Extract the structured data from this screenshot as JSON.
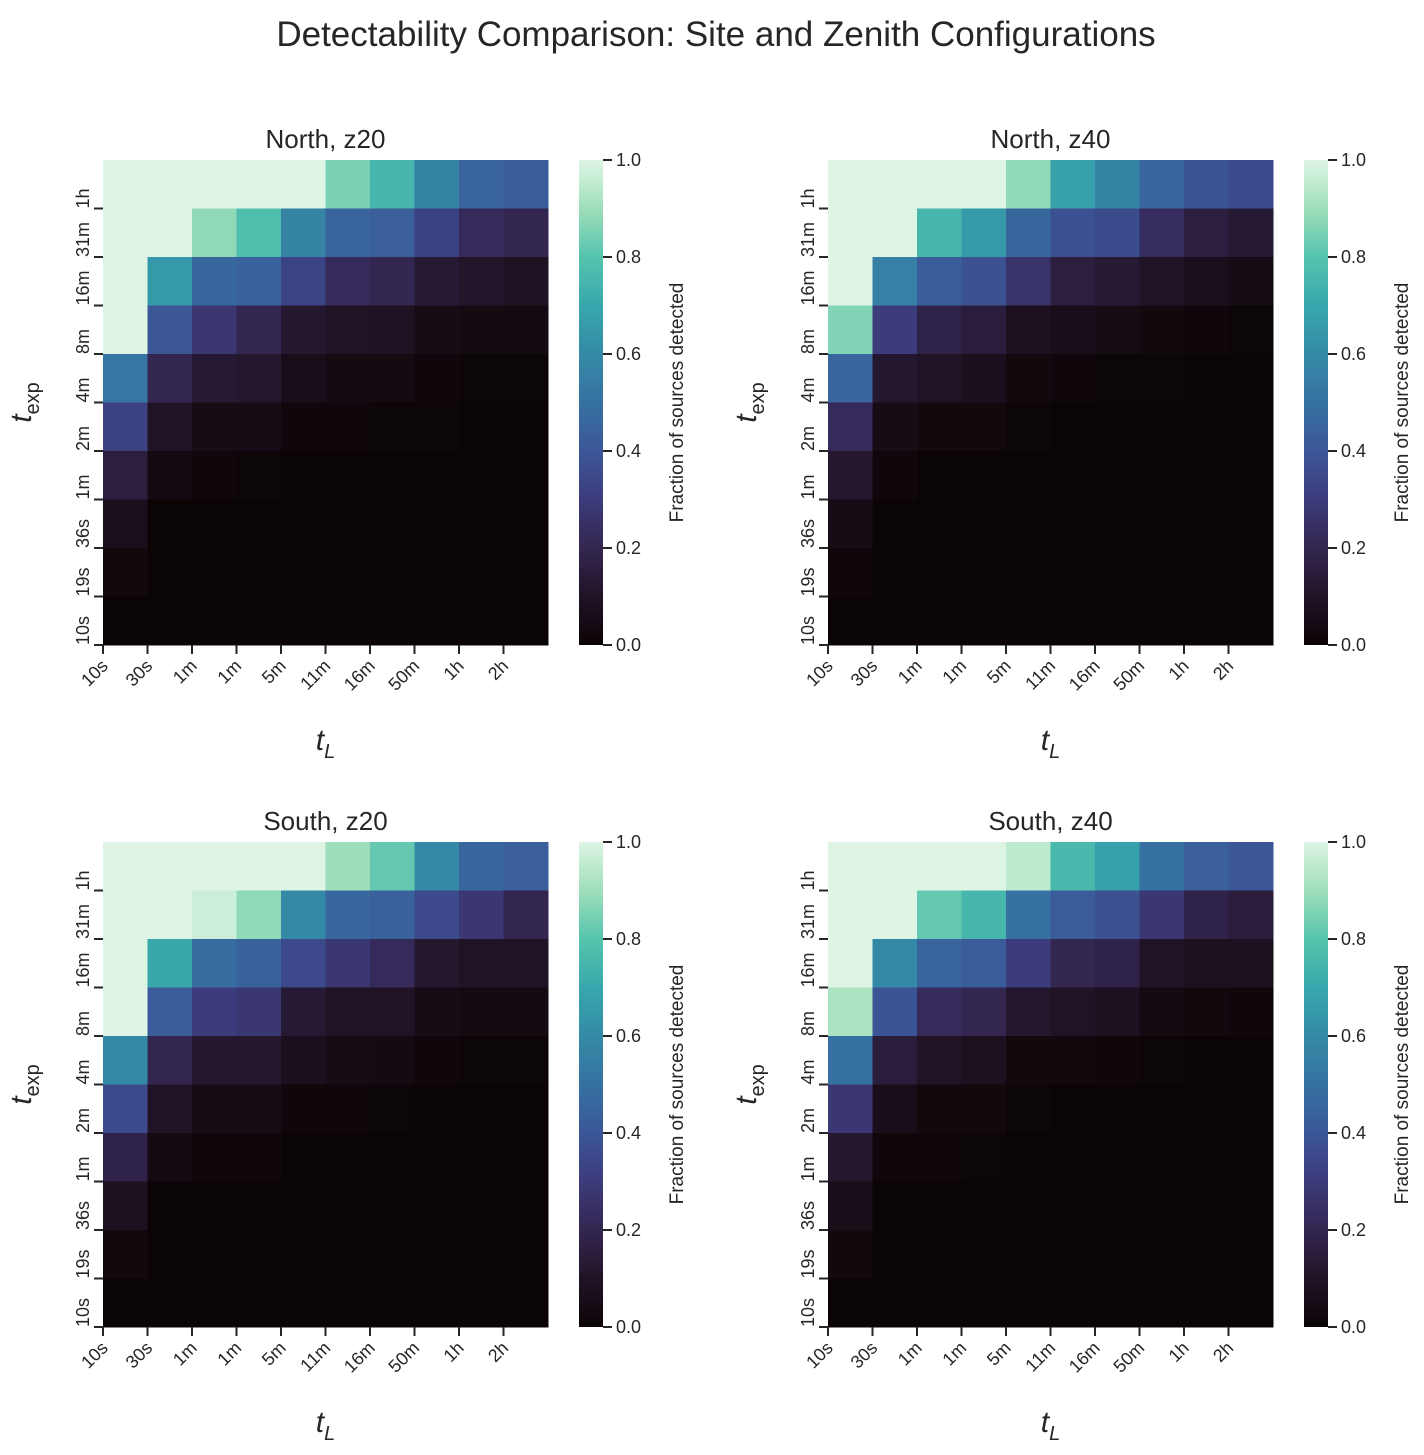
{
  "title": "Detectability Comparison: Site and Zenith Configurations",
  "colormap": "mako",
  "chart_data": [
    {
      "type": "heatmap",
      "title": "North, z20",
      "xlabel": "t_L",
      "ylabel": "t_exp",
      "x_ticklabels": [
        "10s",
        "30s",
        "1m",
        "1m",
        "5m",
        "11m",
        "16m",
        "50m",
        "1h",
        "2h"
      ],
      "y_ticklabels": [
        "1h",
        "31m",
        "16m",
        "8m",
        "4m",
        "2m",
        "1m",
        "36s",
        "19s",
        "10s"
      ],
      "colorbar_label": "Fraction of sources detected",
      "colorbar_ticks": [
        "0.0",
        "0.2",
        "0.4",
        "0.6",
        "0.8",
        "1.0"
      ],
      "vmin": 0,
      "vmax": 1,
      "values": [
        [
          1,
          1,
          1,
          1,
          1,
          0.85,
          0.75,
          0.57,
          0.45,
          0.42
        ],
        [
          1,
          1,
          0.88,
          0.78,
          0.57,
          0.45,
          0.43,
          0.32,
          0.22,
          0.2
        ],
        [
          1,
          0.65,
          0.46,
          0.44,
          0.33,
          0.22,
          0.2,
          0.13,
          0.11,
          0.09
        ],
        [
          1,
          0.4,
          0.28,
          0.2,
          0.12,
          0.1,
          0.09,
          0.05,
          0.04,
          0.04
        ],
        [
          0.52,
          0.2,
          0.13,
          0.12,
          0.06,
          0.04,
          0.04,
          0.02,
          0.01,
          0.01
        ],
        [
          0.32,
          0.1,
          0.05,
          0.05,
          0.02,
          0.02,
          0.01,
          0.01,
          0,
          0
        ],
        [
          0.16,
          0.04,
          0.02,
          0.01,
          0,
          0,
          0,
          0,
          0,
          0
        ],
        [
          0.07,
          0,
          0,
          0,
          0,
          0,
          0,
          0,
          0,
          0
        ],
        [
          0.03,
          0,
          0,
          0,
          0,
          0,
          0,
          0,
          0,
          0
        ],
        [
          0,
          0,
          0,
          0,
          0,
          0,
          0,
          0,
          0,
          0
        ]
      ]
    },
    {
      "type": "heatmap",
      "title": "North, z40",
      "xlabel": "t_L",
      "ylabel": "t_exp",
      "x_ticklabels": [
        "10s",
        "30s",
        "1m",
        "1m",
        "5m",
        "11m",
        "16m",
        "50m",
        "1h",
        "2h"
      ],
      "y_ticklabels": [
        "1h",
        "31m",
        "16m",
        "8m",
        "4m",
        "2m",
        "1m",
        "36s",
        "19s",
        "10s"
      ],
      "colorbar_label": "Fraction of sources detected",
      "colorbar_ticks": [
        "0.0",
        "0.2",
        "0.4",
        "0.6",
        "0.8",
        "1.0"
      ],
      "vmin": 0,
      "vmax": 1,
      "values": [
        [
          1,
          1,
          1,
          1,
          0.88,
          0.68,
          0.58,
          0.46,
          0.39,
          0.36
        ],
        [
          1,
          1,
          0.75,
          0.65,
          0.46,
          0.38,
          0.36,
          0.23,
          0.16,
          0.13
        ],
        [
          1,
          0.56,
          0.42,
          0.38,
          0.26,
          0.16,
          0.13,
          0.1,
          0.07,
          0.05
        ],
        [
          0.86,
          0.3,
          0.18,
          0.15,
          0.08,
          0.06,
          0.05,
          0.03,
          0.02,
          0.01
        ],
        [
          0.45,
          0.12,
          0.1,
          0.07,
          0.03,
          0.02,
          0.01,
          0.01,
          0,
          0
        ],
        [
          0.22,
          0.05,
          0.03,
          0.03,
          0.01,
          0,
          0,
          0,
          0,
          0
        ],
        [
          0.12,
          0.02,
          0,
          0,
          0,
          0,
          0,
          0,
          0,
          0
        ],
        [
          0.05,
          0,
          0,
          0,
          0,
          0,
          0,
          0,
          0,
          0
        ],
        [
          0.02,
          0,
          0,
          0,
          0,
          0,
          0,
          0,
          0,
          0
        ],
        [
          0,
          0,
          0,
          0,
          0,
          0,
          0,
          0,
          0,
          0
        ]
      ]
    },
    {
      "type": "heatmap",
      "title": "South, z20",
      "xlabel": "t_L",
      "ylabel": "t_exp",
      "x_ticklabels": [
        "10s",
        "30s",
        "1m",
        "1m",
        "5m",
        "11m",
        "16m",
        "50m",
        "1h",
        "2h"
      ],
      "y_ticklabels": [
        "1h",
        "31m",
        "16m",
        "8m",
        "4m",
        "2m",
        "1m",
        "36s",
        "19s",
        "10s"
      ],
      "colorbar_label": "Fraction of sources detected",
      "colorbar_ticks": [
        "0.0",
        "0.2",
        "0.4",
        "0.6",
        "0.8",
        "1.0"
      ],
      "vmin": 0,
      "vmax": 1,
      "values": [
        [
          1,
          1,
          1,
          1,
          1,
          0.9,
          0.82,
          0.6,
          0.46,
          0.43
        ],
        [
          1,
          1,
          0.97,
          0.88,
          0.6,
          0.46,
          0.44,
          0.35,
          0.28,
          0.2
        ],
        [
          1,
          0.7,
          0.48,
          0.44,
          0.35,
          0.28,
          0.22,
          0.12,
          0.1,
          0.1
        ],
        [
          1,
          0.42,
          0.3,
          0.28,
          0.13,
          0.1,
          0.1,
          0.05,
          0.04,
          0.04
        ],
        [
          0.6,
          0.2,
          0.12,
          0.12,
          0.07,
          0.05,
          0.04,
          0.02,
          0.01,
          0.01
        ],
        [
          0.36,
          0.1,
          0.05,
          0.05,
          0.02,
          0.02,
          0.01,
          0,
          0,
          0
        ],
        [
          0.18,
          0.04,
          0.02,
          0.02,
          0,
          0,
          0,
          0,
          0,
          0
        ],
        [
          0.08,
          0,
          0,
          0,
          0,
          0,
          0,
          0,
          0,
          0
        ],
        [
          0.03,
          0,
          0,
          0,
          0,
          0,
          0,
          0,
          0,
          0
        ],
        [
          0,
          0,
          0,
          0,
          0,
          0,
          0,
          0,
          0,
          0
        ]
      ]
    },
    {
      "type": "heatmap",
      "title": "South, z40",
      "xlabel": "t_L",
      "ylabel": "t_exp",
      "x_ticklabels": [
        "10s",
        "30s",
        "1m",
        "1m",
        "5m",
        "11m",
        "16m",
        "50m",
        "1h",
        "2h"
      ],
      "y_ticklabels": [
        "1h",
        "31m",
        "16m",
        "8m",
        "4m",
        "2m",
        "1m",
        "36s",
        "19s",
        "10s"
      ],
      "colorbar_label": "Fraction of sources detected",
      "colorbar_ticks": [
        "0.0",
        "0.2",
        "0.4",
        "0.6",
        "0.8",
        "1.0"
      ],
      "vmin": 0,
      "vmax": 1,
      "values": [
        [
          1,
          1,
          1,
          1,
          0.95,
          0.76,
          0.68,
          0.5,
          0.43,
          0.4
        ],
        [
          1,
          1,
          0.82,
          0.75,
          0.5,
          0.42,
          0.38,
          0.28,
          0.18,
          0.15
        ],
        [
          1,
          0.6,
          0.45,
          0.42,
          0.3,
          0.2,
          0.18,
          0.1,
          0.08,
          0.08
        ],
        [
          0.92,
          0.39,
          0.22,
          0.2,
          0.12,
          0.1,
          0.08,
          0.04,
          0.03,
          0.02
        ],
        [
          0.5,
          0.15,
          0.1,
          0.08,
          0.03,
          0.03,
          0.02,
          0.01,
          0,
          0
        ],
        [
          0.28,
          0.06,
          0.03,
          0.03,
          0.01,
          0,
          0,
          0,
          0,
          0
        ],
        [
          0.12,
          0.02,
          0.02,
          0.01,
          0,
          0,
          0,
          0,
          0,
          0
        ],
        [
          0.06,
          0,
          0,
          0,
          0,
          0,
          0,
          0,
          0,
          0
        ],
        [
          0.03,
          0,
          0,
          0,
          0,
          0,
          0,
          0,
          0,
          0
        ],
        [
          0,
          0,
          0,
          0,
          0,
          0,
          0,
          0,
          0,
          0
        ]
      ]
    }
  ]
}
